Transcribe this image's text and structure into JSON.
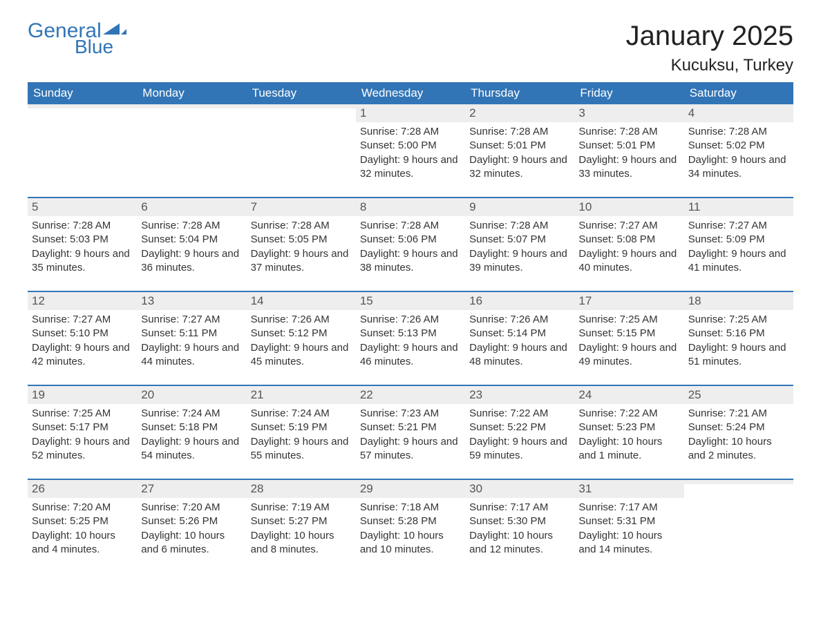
{
  "logo": {
    "text1": "General",
    "text2": "Blue"
  },
  "title": "January 2025",
  "location": "Kucuksu, Turkey",
  "colors": {
    "header_bg": "#3275b6",
    "header_text": "#ffffff",
    "row_accent": "#3275b6",
    "daynum_bg": "#eeeeee",
    "body_text": "#333333",
    "logo_color": "#3275b6",
    "page_bg": "#ffffff"
  },
  "day_headers": [
    "Sunday",
    "Monday",
    "Tuesday",
    "Wednesday",
    "Thursday",
    "Friday",
    "Saturday"
  ],
  "weeks": [
    [
      {
        "n": "",
        "sunrise": "",
        "sunset": "",
        "daylight": ""
      },
      {
        "n": "",
        "sunrise": "",
        "sunset": "",
        "daylight": ""
      },
      {
        "n": "",
        "sunrise": "",
        "sunset": "",
        "daylight": ""
      },
      {
        "n": "1",
        "sunrise": "Sunrise: 7:28 AM",
        "sunset": "Sunset: 5:00 PM",
        "daylight": "Daylight: 9 hours and 32 minutes."
      },
      {
        "n": "2",
        "sunrise": "Sunrise: 7:28 AM",
        "sunset": "Sunset: 5:01 PM",
        "daylight": "Daylight: 9 hours and 32 minutes."
      },
      {
        "n": "3",
        "sunrise": "Sunrise: 7:28 AM",
        "sunset": "Sunset: 5:01 PM",
        "daylight": "Daylight: 9 hours and 33 minutes."
      },
      {
        "n": "4",
        "sunrise": "Sunrise: 7:28 AM",
        "sunset": "Sunset: 5:02 PM",
        "daylight": "Daylight: 9 hours and 34 minutes."
      }
    ],
    [
      {
        "n": "5",
        "sunrise": "Sunrise: 7:28 AM",
        "sunset": "Sunset: 5:03 PM",
        "daylight": "Daylight: 9 hours and 35 minutes."
      },
      {
        "n": "6",
        "sunrise": "Sunrise: 7:28 AM",
        "sunset": "Sunset: 5:04 PM",
        "daylight": "Daylight: 9 hours and 36 minutes."
      },
      {
        "n": "7",
        "sunrise": "Sunrise: 7:28 AM",
        "sunset": "Sunset: 5:05 PM",
        "daylight": "Daylight: 9 hours and 37 minutes."
      },
      {
        "n": "8",
        "sunrise": "Sunrise: 7:28 AM",
        "sunset": "Sunset: 5:06 PM",
        "daylight": "Daylight: 9 hours and 38 minutes."
      },
      {
        "n": "9",
        "sunrise": "Sunrise: 7:28 AM",
        "sunset": "Sunset: 5:07 PM",
        "daylight": "Daylight: 9 hours and 39 minutes."
      },
      {
        "n": "10",
        "sunrise": "Sunrise: 7:27 AM",
        "sunset": "Sunset: 5:08 PM",
        "daylight": "Daylight: 9 hours and 40 minutes."
      },
      {
        "n": "11",
        "sunrise": "Sunrise: 7:27 AM",
        "sunset": "Sunset: 5:09 PM",
        "daylight": "Daylight: 9 hours and 41 minutes."
      }
    ],
    [
      {
        "n": "12",
        "sunrise": "Sunrise: 7:27 AM",
        "sunset": "Sunset: 5:10 PM",
        "daylight": "Daylight: 9 hours and 42 minutes."
      },
      {
        "n": "13",
        "sunrise": "Sunrise: 7:27 AM",
        "sunset": "Sunset: 5:11 PM",
        "daylight": "Daylight: 9 hours and 44 minutes."
      },
      {
        "n": "14",
        "sunrise": "Sunrise: 7:26 AM",
        "sunset": "Sunset: 5:12 PM",
        "daylight": "Daylight: 9 hours and 45 minutes."
      },
      {
        "n": "15",
        "sunrise": "Sunrise: 7:26 AM",
        "sunset": "Sunset: 5:13 PM",
        "daylight": "Daylight: 9 hours and 46 minutes."
      },
      {
        "n": "16",
        "sunrise": "Sunrise: 7:26 AM",
        "sunset": "Sunset: 5:14 PM",
        "daylight": "Daylight: 9 hours and 48 minutes."
      },
      {
        "n": "17",
        "sunrise": "Sunrise: 7:25 AM",
        "sunset": "Sunset: 5:15 PM",
        "daylight": "Daylight: 9 hours and 49 minutes."
      },
      {
        "n": "18",
        "sunrise": "Sunrise: 7:25 AM",
        "sunset": "Sunset: 5:16 PM",
        "daylight": "Daylight: 9 hours and 51 minutes."
      }
    ],
    [
      {
        "n": "19",
        "sunrise": "Sunrise: 7:25 AM",
        "sunset": "Sunset: 5:17 PM",
        "daylight": "Daylight: 9 hours and 52 minutes."
      },
      {
        "n": "20",
        "sunrise": "Sunrise: 7:24 AM",
        "sunset": "Sunset: 5:18 PM",
        "daylight": "Daylight: 9 hours and 54 minutes."
      },
      {
        "n": "21",
        "sunrise": "Sunrise: 7:24 AM",
        "sunset": "Sunset: 5:19 PM",
        "daylight": "Daylight: 9 hours and 55 minutes."
      },
      {
        "n": "22",
        "sunrise": "Sunrise: 7:23 AM",
        "sunset": "Sunset: 5:21 PM",
        "daylight": "Daylight: 9 hours and 57 minutes."
      },
      {
        "n": "23",
        "sunrise": "Sunrise: 7:22 AM",
        "sunset": "Sunset: 5:22 PM",
        "daylight": "Daylight: 9 hours and 59 minutes."
      },
      {
        "n": "24",
        "sunrise": "Sunrise: 7:22 AM",
        "sunset": "Sunset: 5:23 PM",
        "daylight": "Daylight: 10 hours and 1 minute."
      },
      {
        "n": "25",
        "sunrise": "Sunrise: 7:21 AM",
        "sunset": "Sunset: 5:24 PM",
        "daylight": "Daylight: 10 hours and 2 minutes."
      }
    ],
    [
      {
        "n": "26",
        "sunrise": "Sunrise: 7:20 AM",
        "sunset": "Sunset: 5:25 PM",
        "daylight": "Daylight: 10 hours and 4 minutes."
      },
      {
        "n": "27",
        "sunrise": "Sunrise: 7:20 AM",
        "sunset": "Sunset: 5:26 PM",
        "daylight": "Daylight: 10 hours and 6 minutes."
      },
      {
        "n": "28",
        "sunrise": "Sunrise: 7:19 AM",
        "sunset": "Sunset: 5:27 PM",
        "daylight": "Daylight: 10 hours and 8 minutes."
      },
      {
        "n": "29",
        "sunrise": "Sunrise: 7:18 AM",
        "sunset": "Sunset: 5:28 PM",
        "daylight": "Daylight: 10 hours and 10 minutes."
      },
      {
        "n": "30",
        "sunrise": "Sunrise: 7:17 AM",
        "sunset": "Sunset: 5:30 PM",
        "daylight": "Daylight: 10 hours and 12 minutes."
      },
      {
        "n": "31",
        "sunrise": "Sunrise: 7:17 AM",
        "sunset": "Sunset: 5:31 PM",
        "daylight": "Daylight: 10 hours and 14 minutes."
      },
      {
        "n": "",
        "sunrise": "",
        "sunset": "",
        "daylight": ""
      }
    ]
  ]
}
